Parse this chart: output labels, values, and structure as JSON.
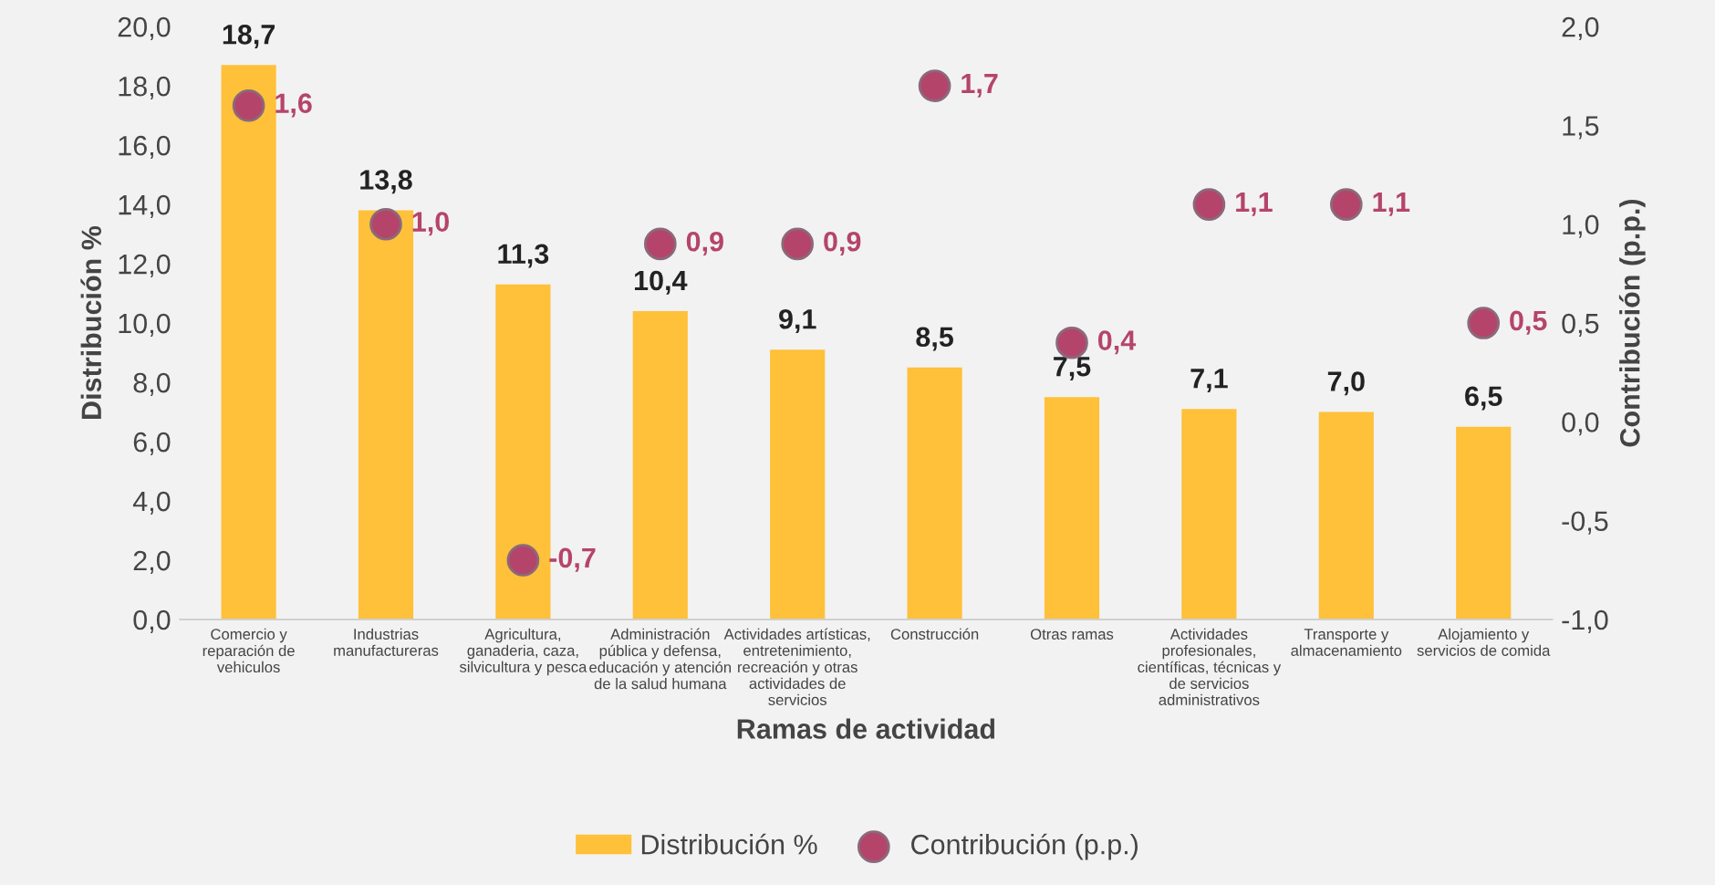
{
  "chart_data": {
    "type": "bar",
    "xlabel": "Ramas de actividad",
    "ylabel": "Distribución %",
    "y2label": "Contribución (p.p.)",
    "categories": [
      "Comercio y\nreparación de\nvehiculos",
      "Industrias\nmanufactureras",
      "Agricultura,\nganaderia, caza,\nsilvicultura y pesca",
      "Administración\npública y defensa,\neducación y atención\nde la salud humana",
      "Actividades artísticas,\nentretenimiento,\nrecreación y otras\nactividades de\nservicios",
      "Construcción",
      "Otras ramas",
      "Actividades\nprofesionales,\ncientíficas, técnicas y\nde servicios\nadministrativos",
      "Transporte y\nalmacenamiento",
      "Alojamiento y\nservicios de comida"
    ],
    "series": [
      {
        "name": "Distribución %",
        "color": "#ffc03a",
        "values": [
          18.7,
          13.8,
          11.3,
          10.4,
          9.1,
          8.5,
          7.5,
          7.1,
          7.0,
          6.5
        ],
        "value_labels": [
          "18,7",
          "13,8",
          "11,3",
          "10,4",
          "9,1",
          "8,5",
          "7,5",
          "7,1",
          "7,0",
          "6,5"
        ]
      },
      {
        "name": "Contribución (p.p.)",
        "type": "scatter",
        "axis": "y2",
        "color": "#b5446b",
        "values": [
          1.6,
          1.0,
          -0.7,
          0.9,
          0.9,
          1.7,
          0.4,
          1.1,
          1.1,
          0.5
        ],
        "value_labels": [
          "1,6",
          "1,0",
          "-0,7",
          "0,9",
          "0,9",
          "1,7",
          "0,4",
          "1,1",
          "1,1",
          "0,5"
        ]
      }
    ],
    "ylim": [
      0,
      20
    ],
    "yticks": [
      {
        "value": 0,
        "label": "0,0"
      },
      {
        "value": 2,
        "label": "2,0"
      },
      {
        "value": 4,
        "label": "4,0"
      },
      {
        "value": 6,
        "label": "6,0"
      },
      {
        "value": 8,
        "label": "8,0"
      },
      {
        "value": 10,
        "label": "10,0"
      },
      {
        "value": 12,
        "label": "12,0"
      },
      {
        "value": 14,
        "label": "14,0"
      },
      {
        "value": 16,
        "label": "16,0"
      },
      {
        "value": 18,
        "label": "18,0"
      },
      {
        "value": 20,
        "label": "20,0"
      }
    ],
    "y2lim": [
      -1,
      2
    ],
    "y2ticks": [
      {
        "value": -1,
        "label": "-1,0"
      },
      {
        "value": -0.5,
        "label": "-0,5"
      },
      {
        "value": 0,
        "label": "0,0"
      },
      {
        "value": 0.5,
        "label": "0,5"
      },
      {
        "value": 1,
        "label": "1,0"
      },
      {
        "value": 1.5,
        "label": "1,5"
      },
      {
        "value": 2,
        "label": "2,0"
      }
    ],
    "marker": "circle",
    "grid": false,
    "legend": "bottom"
  }
}
